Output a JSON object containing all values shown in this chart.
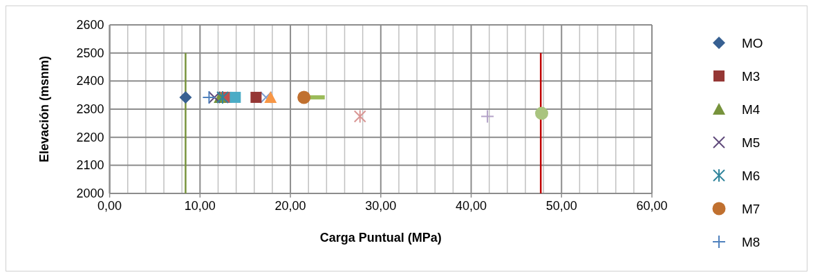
{
  "chart_data": {
    "type": "scatter",
    "xlabel": "Carga Puntual (MPa)",
    "ylabel": "Elevación (msnm)",
    "xlim": [
      0,
      60
    ],
    "xticks": [
      {
        "value": 0,
        "label": "0,00"
      },
      {
        "value": 2,
        "label": null
      },
      {
        "value": 4,
        "label": null
      },
      {
        "value": 6,
        "label": null
      },
      {
        "value": 8,
        "label": null
      },
      {
        "value": 10,
        "label": "10,00"
      },
      {
        "value": 12,
        "label": null
      },
      {
        "value": 14,
        "label": null
      },
      {
        "value": 16,
        "label": null
      },
      {
        "value": 18,
        "label": null
      },
      {
        "value": 20,
        "label": "20,00"
      },
      {
        "value": 22,
        "label": null
      },
      {
        "value": 24,
        "label": null
      },
      {
        "value": 26,
        "label": null
      },
      {
        "value": 28,
        "label": null
      },
      {
        "value": 30,
        "label": "30,00"
      },
      {
        "value": 32,
        "label": null
      },
      {
        "value": 34,
        "label": null
      },
      {
        "value": 36,
        "label": null
      },
      {
        "value": 38,
        "label": null
      },
      {
        "value": 40,
        "label": "40,00"
      },
      {
        "value": 42,
        "label": null
      },
      {
        "value": 44,
        "label": null
      },
      {
        "value": 46,
        "label": null
      },
      {
        "value": 48,
        "label": null
      },
      {
        "value": 50,
        "label": "50,00"
      },
      {
        "value": 52,
        "label": null
      },
      {
        "value": 54,
        "label": null
      },
      {
        "value": 56,
        "label": null
      },
      {
        "value": 58,
        "label": null
      },
      {
        "value": 60,
        "label": "60,00"
      }
    ],
    "ylim": [
      2000,
      2600
    ],
    "yticks": [
      2000,
      2100,
      2200,
      2300,
      2400,
      2500,
      2600
    ],
    "grid": true,
    "legend": "right",
    "series": [
      {
        "type": "line",
        "color": "#77933c",
        "x": [
          8.4,
          8.4
        ],
        "values": [
          2000,
          2500
        ],
        "marker": "none"
      },
      {
        "type": "line",
        "color": "#c00000",
        "x": [
          47.7,
          47.7
        ],
        "values": [
          2000,
          2500
        ],
        "marker": "none"
      },
      {
        "type": "line",
        "color": "#9bbb59",
        "x": [
          21.5,
          23.8
        ],
        "values": [
          2342,
          2342
        ],
        "marker": "none"
      },
      {
        "name": "MO",
        "color": "#376092",
        "x": [
          8.4
        ],
        "values": [
          2342
        ],
        "marker": "diamond"
      },
      {
        "name": "M3",
        "color": "#953735",
        "x": [
          16.2
        ],
        "values": [
          2342
        ],
        "marker": "square"
      },
      {
        "name": "M4",
        "color": "#77933c",
        "x": [
          12.2
        ],
        "values": [
          2342
        ],
        "marker": "triangle"
      },
      {
        "name": "M5",
        "color": "#604a7b",
        "x": [
          11.6
        ],
        "values": [
          2342
        ],
        "marker": "x"
      },
      {
        "name": "M6",
        "color": "#31859c",
        "x": [
          12.5
        ],
        "values": [
          2342
        ],
        "marker": "cross"
      },
      {
        "name": "M7",
        "color": "#c0702f",
        "x": [
          21.5
        ],
        "values": [
          2342
        ],
        "marker": "circle"
      },
      {
        "name": "M8",
        "color": "#4f81bd",
        "x": [
          11.0
        ],
        "values": [
          2342
        ],
        "marker": "plus"
      },
      {
        "color": "#c0504d",
        "x": [
          12.9
        ],
        "values": [
          2342
        ],
        "marker": "square"
      },
      {
        "color": "#4bacc6",
        "x": [
          13.9
        ],
        "values": [
          2342
        ],
        "marker": "square"
      },
      {
        "color": "#7f9fd0",
        "x": [
          17.3
        ],
        "values": [
          2342
        ],
        "marker": "x"
      },
      {
        "color": "#f79646",
        "x": [
          17.8
        ],
        "values": [
          2342
        ],
        "marker": "triangle"
      },
      {
        "color": "#d99694",
        "x": [
          27.7
        ],
        "values": [
          2274
        ],
        "marker": "cross"
      },
      {
        "color": "#b3a2c7",
        "x": [
          41.8
        ],
        "values": [
          2274
        ],
        "marker": "plus"
      },
      {
        "color": "#a9c47f",
        "x": [
          47.8
        ],
        "values": [
          2285
        ],
        "marker": "circle"
      }
    ]
  }
}
